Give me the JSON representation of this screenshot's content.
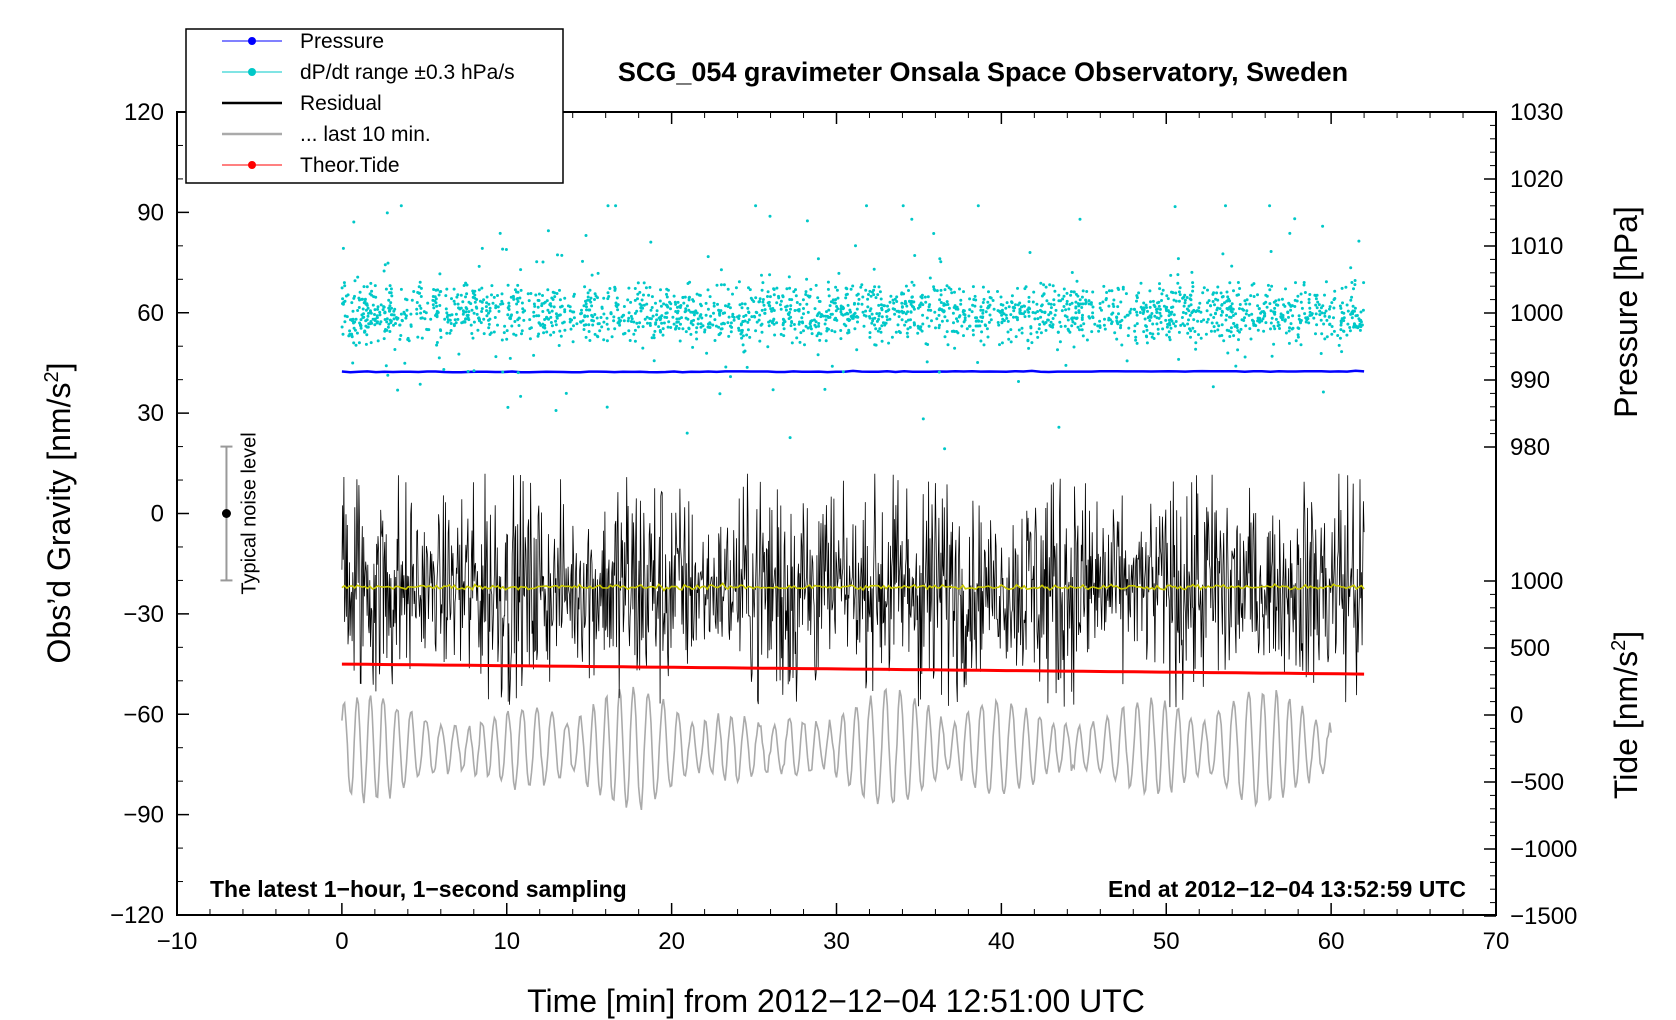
{
  "chart_data": {
    "type": "line",
    "title": "SCG_054 gravimeter Onsala Space Observatory, Sweden",
    "xlabel": "Time [min] from 2012−12−04 12:51:00 UTC",
    "ylabel_left": "Obs’d Gravity [nm/s",
    "ylabel_left_sup": "2",
    "ylabel_left_end": "]",
    "ylabel_right_top": "Pressure [hPa]",
    "ylabel_right_bottom": "Tide [nm/s",
    "ylabel_right_bottom_sup": "2",
    "ylabel_right_bottom_end": "]",
    "xlim": [
      -10,
      70
    ],
    "ylim_left": [
      -120,
      120
    ],
    "xticks": [
      -10,
      0,
      10,
      20,
      30,
      40,
      50,
      60,
      70
    ],
    "xtick_labels": [
      "−10",
      "0",
      "10",
      "20",
      "30",
      "40",
      "50",
      "60",
      "70"
    ],
    "yticks_left": [
      120,
      90,
      60,
      30,
      0,
      -30,
      -60,
      -90,
      -120
    ],
    "ytick_labels_left": [
      "120",
      "90",
      "60",
      "30",
      "0",
      "−30",
      "−60",
      "−90",
      "−120"
    ],
    "pressure_axis": {
      "ticks": [
        1030,
        1020,
        1010,
        1000,
        990,
        980
      ],
      "tick_labels": [
        "1030",
        "1020",
        "1010",
        "1000",
        "990",
        "980"
      ]
    },
    "tide_axis": {
      "ticks": [
        1000,
        500,
        0,
        -500,
        -1000,
        -1500
      ],
      "tick_labels": [
        "1000",
        "500",
        "0",
        "−500",
        "−1000",
        "−1500"
      ]
    },
    "series": [
      {
        "name": "Pressure",
        "color": "#0000ff",
        "x_range": [
          0,
          62
        ],
        "value_hpa": 991.2,
        "trend_hpa": 0.1
      },
      {
        "name": "dP/dt range ±0.3 hPa/s",
        "color": "#00c8c8",
        "x_range": [
          0,
          62
        ],
        "center": 60,
        "spread": 6
      },
      {
        "name": "Residual",
        "color": "#000000",
        "x_range": [
          0,
          62
        ],
        "center": -22,
        "amplitude": 20
      },
      {
        "name": "... last 10 min.",
        "color": "#aaaaaa",
        "x_range": [
          0,
          60
        ],
        "center": -70,
        "amplitude": 18
      },
      {
        "name": "Theor.Tide",
        "color": "#ff0000",
        "x_range": [
          0,
          62
        ],
        "start": -45,
        "end": -48
      },
      {
        "name": "mean",
        "color": "#c8c800",
        "x_range": [
          0,
          62
        ],
        "value": -22
      }
    ],
    "noise_bar": {
      "x": -7,
      "y": 0,
      "low": -20,
      "high": 20,
      "label": "Typical noise level"
    },
    "annotations": {
      "bottom_left": "The latest 1−hour, 1−second sampling",
      "bottom_right": "End at 2012−12−04 13:52:59 UTC"
    },
    "legend": {
      "position": "top-left",
      "entries": [
        {
          "label": "Pressure",
          "color": "#0000ff",
          "style": "line-dot"
        },
        {
          "label": "dP/dt range ±0.3 hPa/s",
          "color": "#00c8c8",
          "style": "line-dot"
        },
        {
          "label": "Residual",
          "color": "#000000",
          "style": "line"
        },
        {
          "label": "... last 10 min.",
          "color": "#aaaaaa",
          "style": "line"
        },
        {
          "label": "Theor.Tide",
          "color": "#ff0000",
          "style": "line-dot"
        }
      ]
    }
  }
}
